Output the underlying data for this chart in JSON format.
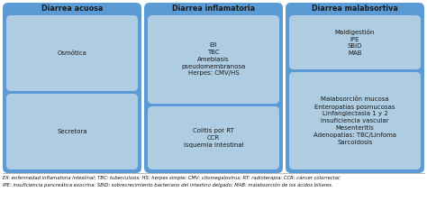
{
  "bg_color": "#5b9bd5",
  "inner_bg_color": "#aecde3",
  "white": "#ffffff",
  "text_color": "#2e2e2e",
  "dark_text": "#1a1a1a",
  "columns": [
    {
      "header": "Diarrea acuosa",
      "boxes": [
        {
          "lines": [
            "Osmótica"
          ],
          "weight": 1
        },
        {
          "lines": [
            "Secretora"
          ],
          "weight": 1
        }
      ]
    },
    {
      "header": "Diarrea inflamatoria",
      "boxes": [
        {
          "lines": [
            "EII",
            "TBC",
            "Amebiasis",
            "pseudomembranosa",
            "Herpes: CMV/HS"
          ],
          "weight": 1.4
        },
        {
          "lines": [
            "Colitis por RT",
            "CCR",
            "Isquemia intestinal"
          ],
          "weight": 1
        }
      ]
    },
    {
      "header": "Diarrea malabsortiva",
      "boxes": [
        {
          "lines": [
            "Maldigestión",
            "IPE",
            "SBID",
            "MAB"
          ],
          "weight": 1
        },
        {
          "lines": [
            "Malabsorción mucosa",
            "Enteropatías posmucosas",
            "Linfangiectasia 1 y 2",
            "Insuficiencia vascular",
            "Mesenteritis",
            "Adenopatías: TBC/Linfoma",
            "Sarcoidosis"
          ],
          "weight": 1.8
        }
      ]
    }
  ],
  "footnote_line1": "EII: enfermedad inflamatoria intestinal; TBC: tuberculosis; HS: herpes simple; CMV: citomegalovirus; RT: radioterapia; CCR: cáncer colorrectal;",
  "footnote_line2": "IPE: insuficiencia pancreática exocrina; SBID: sobrecrecimiento bacteriano del intestino delgado; MAB: malabsorción de los ácidos biliares."
}
